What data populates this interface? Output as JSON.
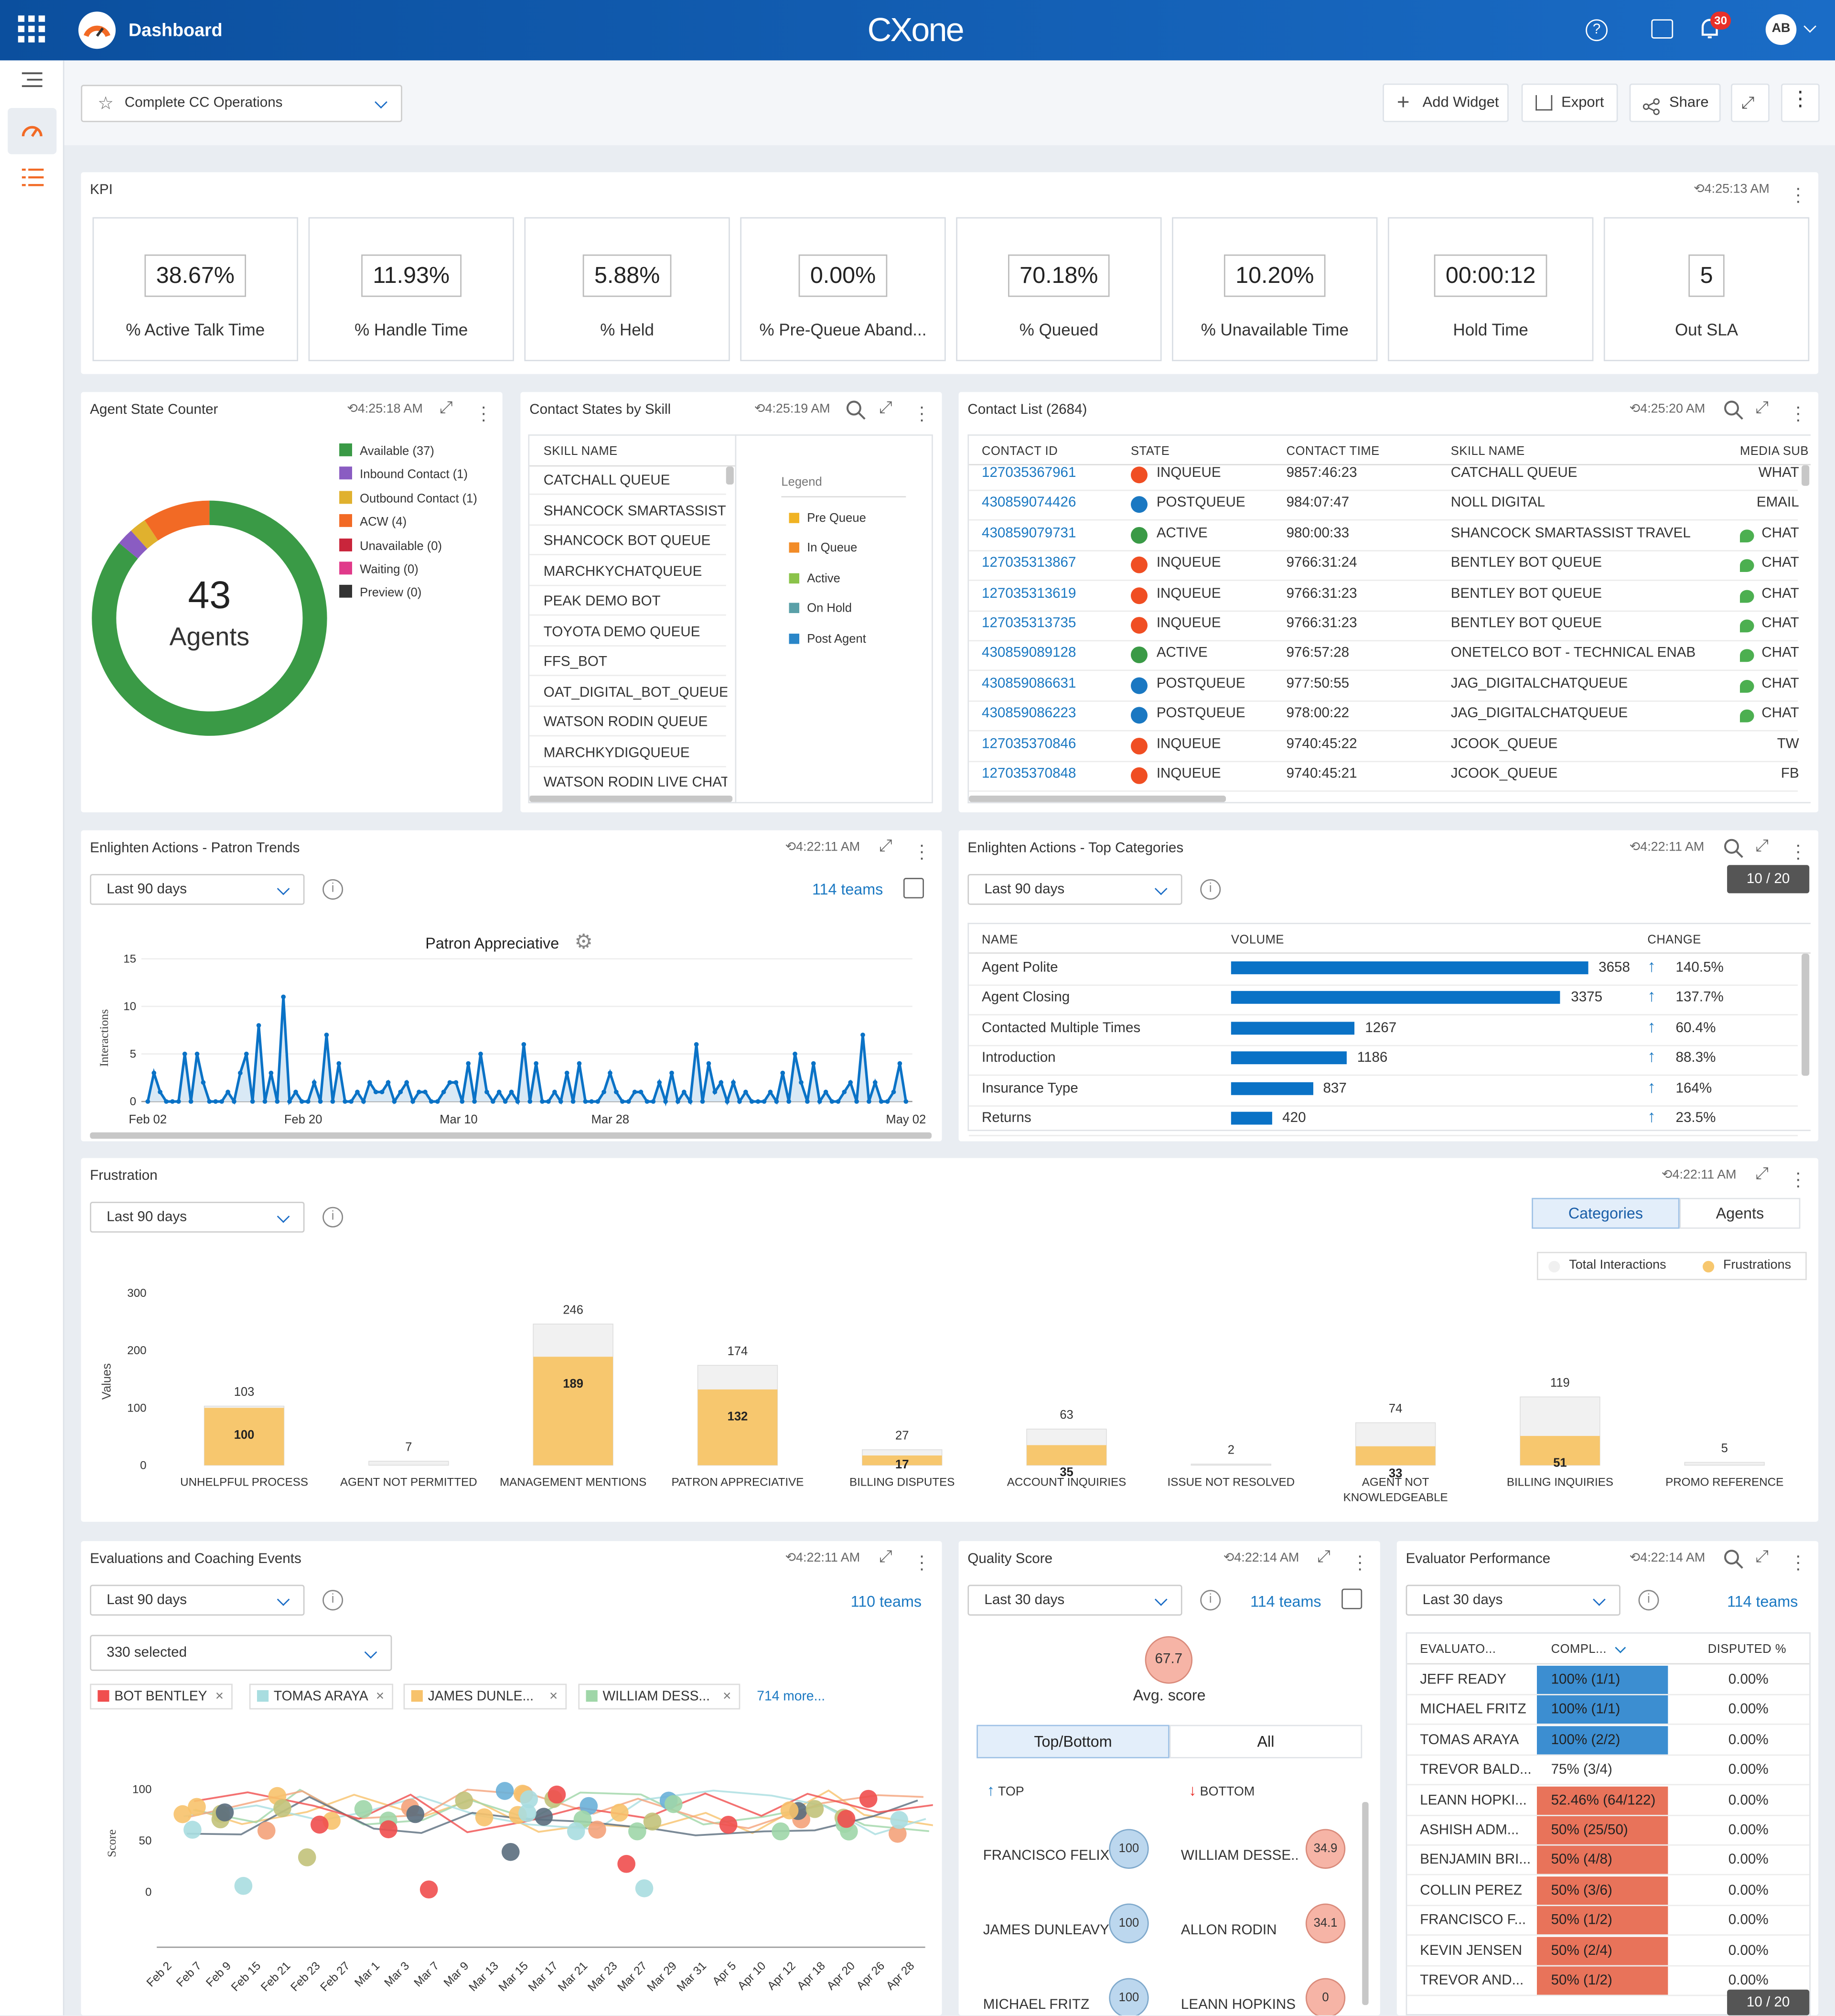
{
  "app": {
    "title": "Dashboard",
    "logo": "CXone",
    "notif_count": "30",
    "avatar": "AB"
  },
  "header": {
    "dashboard_name": "Complete CC Operations",
    "add_widget": "Add Widget",
    "export": "Export",
    "share": "Share"
  },
  "kpi": {
    "title": "KPI",
    "time": "4:25:13 AM",
    "items": [
      {
        "value": "38.67%",
        "label": "% Active Talk Time"
      },
      {
        "value": "11.93%",
        "label": "% Handle Time"
      },
      {
        "value": "5.88%",
        "label": "% Held"
      },
      {
        "value": "0.00%",
        "label": "% Pre-Queue Aband..."
      },
      {
        "value": "70.18%",
        "label": "% Queued"
      },
      {
        "value": "10.20%",
        "label": "% Unavailable Time"
      },
      {
        "value": "00:00:12",
        "label": "Hold Time"
      },
      {
        "value": "5",
        "label": "Out SLA"
      }
    ]
  },
  "agent_state": {
    "title": "Agent State Counter",
    "time": "4:25:18 AM",
    "total": "43",
    "total_label": "Agents",
    "legend": [
      {
        "label": "Available (37)",
        "color": "#3a9a46",
        "value": 37
      },
      {
        "label": "Inbound Contact (1)",
        "color": "#8a5cc2",
        "value": 1
      },
      {
        "label": "Outbound Contact (1)",
        "color": "#e0b12e",
        "value": 1
      },
      {
        "label": "ACW (4)",
        "color": "#f26a25",
        "value": 4
      },
      {
        "label": "Unavailable (0)",
        "color": "#c9253b",
        "value": 0
      },
      {
        "label": "Waiting (0)",
        "color": "#e03a8a",
        "value": 0
      },
      {
        "label": "Preview (0)",
        "color": "#333333",
        "value": 0
      }
    ]
  },
  "contact_states": {
    "title": "Contact States by Skill",
    "time": "4:25:19 AM",
    "col": "SKILL NAME",
    "rows": [
      "CATCHALL QUEUE",
      "SHANCOCK SMARTASSIST TF",
      "SHANCOCK BOT QUEUE",
      "MARCHKYCHATQUEUE",
      "PEAK DEMO BOT",
      "TOYOTA DEMO QUEUE",
      "FFS_BOT",
      "OAT_DIGITAL_BOT_QUEUE",
      "WATSON RODIN QUEUE",
      "MARCHKYDIGQUEUE",
      "WATSON RODIN LIVE CHAT Q"
    ],
    "legend_title": "Legend",
    "legend": [
      {
        "label": "Pre Queue",
        "color": "#f0b323"
      },
      {
        "label": "In Queue",
        "color": "#f28c28"
      },
      {
        "label": "Active",
        "color": "#8bc34a"
      },
      {
        "label": "On Hold",
        "color": "#5aa0a8"
      },
      {
        "label": "Post Agent",
        "color": "#2a86c8"
      }
    ]
  },
  "contact_list": {
    "title": "Contact List (2684)",
    "time": "4:25:20 AM",
    "cols": [
      "CONTACT ID",
      "STATE",
      "CONTACT TIME",
      "SKILL NAME",
      "MEDIA SUB"
    ],
    "rows": [
      {
        "id": "127035367961",
        "state": "INQUEUE",
        "time": "9857:46:23",
        "skill": "CATCHALL QUEUE",
        "media": "WHAT",
        "color": "#f04e23",
        "chat": false
      },
      {
        "id": "430859074426",
        "state": "POSTQUEUE",
        "time": "984:07:47",
        "skill": "NOLL DIGITAL",
        "media": "EMAIL",
        "color": "#1a78c2",
        "chat": false
      },
      {
        "id": "430859079731",
        "state": "ACTIVE",
        "time": "980:00:33",
        "skill": "SHANCOCK SMARTASSIST TRAVEL DF",
        "media": "CHAT",
        "color": "#3a9a46",
        "chat": true
      },
      {
        "id": "127035313867",
        "state": "INQUEUE",
        "time": "9766:31:24",
        "skill": "BENTLEY BOT QUEUE",
        "media": "CHAT",
        "color": "#f04e23",
        "chat": true
      },
      {
        "id": "127035313619",
        "state": "INQUEUE",
        "time": "9766:31:23",
        "skill": "BENTLEY BOT QUEUE",
        "media": "CHAT",
        "color": "#f04e23",
        "chat": true
      },
      {
        "id": "127035313735",
        "state": "INQUEUE",
        "time": "9766:31:23",
        "skill": "BENTLEY BOT QUEUE",
        "media": "CHAT",
        "color": "#f04e23",
        "chat": true
      },
      {
        "id": "430859089128",
        "state": "ACTIVE",
        "time": "976:57:28",
        "skill": "ONETELCO BOT - TECHNICAL ENABL",
        "media": "CHAT",
        "color": "#3a9a46",
        "chat": true
      },
      {
        "id": "430859086631",
        "state": "POSTQUEUE",
        "time": "977:50:55",
        "skill": "JAG_DIGITALCHATQUEUE",
        "media": "CHAT",
        "color": "#1a78c2",
        "chat": true
      },
      {
        "id": "430859086223",
        "state": "POSTQUEUE",
        "time": "978:00:22",
        "skill": "JAG_DIGITALCHATQUEUE",
        "media": "CHAT",
        "color": "#1a78c2",
        "chat": true
      },
      {
        "id": "127035370846",
        "state": "INQUEUE",
        "time": "9740:45:22",
        "skill": "JCOOK_QUEUE",
        "media": "TW",
        "color": "#f04e23",
        "chat": false
      },
      {
        "id": "127035370848",
        "state": "INQUEUE",
        "time": "9740:45:21",
        "skill": "JCOOK_QUEUE",
        "media": "FB",
        "color": "#f04e23",
        "chat": false
      }
    ]
  },
  "patron_trends": {
    "title": "Enlighten Actions - Patron Trends",
    "time": "4:22:11 AM",
    "range": "Last 90 days",
    "teams": "114 teams",
    "chart_data": {
      "type": "area",
      "title": "Patron Appreciative",
      "ylabel": "Interactions",
      "ylim": [
        0,
        15
      ],
      "yticks": [
        0,
        5,
        10,
        15
      ],
      "xtick_labels": [
        "Feb 02",
        "Feb 20",
        "Mar 10",
        "Mar 28",
        "May 02"
      ],
      "values": [
        0,
        3,
        1,
        0,
        0,
        0,
        5,
        0,
        5,
        2,
        0,
        0,
        0,
        1,
        0,
        3,
        5,
        0,
        8,
        0,
        3,
        0,
        11,
        0,
        1,
        0,
        0,
        2,
        0,
        7,
        0,
        4,
        0,
        0,
        1,
        0,
        2,
        1,
        1,
        2,
        0,
        1,
        2,
        0,
        1,
        1,
        0,
        0,
        1,
        2,
        2,
        0,
        4,
        0,
        5,
        1,
        0,
        1,
        0,
        1,
        0,
        6,
        0,
        4,
        0,
        0,
        1,
        0,
        3,
        0,
        4,
        0,
        0,
        0,
        1,
        3,
        1,
        0,
        0,
        1,
        1,
        0,
        0,
        2,
        0,
        3,
        0,
        1,
        0,
        6,
        0,
        4,
        1,
        2,
        0,
        2,
        0,
        1,
        0,
        0,
        0,
        1,
        0,
        3,
        0,
        5,
        2,
        0,
        4,
        0,
        1,
        0,
        0,
        1,
        2,
        0,
        7,
        0,
        2,
        0,
        0,
        1,
        4,
        0
      ]
    }
  },
  "top_categories": {
    "title": "Enlighten Actions - Top Categories",
    "time": "4:22:11 AM",
    "range": "Last 90 days",
    "page": "10 / 20",
    "cols": [
      "NAME",
      "VOLUME",
      "CHANGE"
    ],
    "rows": [
      {
        "name": "Agent Polite",
        "volume": 3658,
        "vtext": "3658",
        "change": "140.5%"
      },
      {
        "name": "Agent Closing",
        "volume": 3375,
        "vtext": "3375",
        "change": "137.7%"
      },
      {
        "name": "Contacted Multiple Times",
        "volume": 1267,
        "vtext": "1267",
        "change": "60.4%"
      },
      {
        "name": "Introduction",
        "volume": 1186,
        "vtext": "1186",
        "change": "88.3%"
      },
      {
        "name": "Insurance Type",
        "volume": 837,
        "vtext": "837",
        "change": "164%"
      },
      {
        "name": "Returns",
        "volume": 420,
        "vtext": "420",
        "change": "23.5%"
      }
    ]
  },
  "frustration": {
    "title": "Frustration",
    "time": "4:22:11 AM",
    "range": "Last 90 days",
    "tab_categories": "Categories",
    "tab_agents": "Agents",
    "legend_total": "Total Interactions",
    "legend_frus": "Frustrations",
    "chart_data": {
      "type": "bar",
      "ylabel": "Values",
      "ylim": [
        0,
        300
      ],
      "yticks": [
        0,
        100,
        200,
        300
      ],
      "categories": [
        "UNHELPFUL PROCESS",
        "AGENT NOT PERMITTED",
        "MANAGEMENT MENTIONS",
        "PATRON APPRECIATIVE",
        "BILLING DISPUTES",
        "ACCOUNT INQUIRIES",
        "ISSUE NOT RESOLVED",
        "AGENT NOT KNOWLEDGEABLE",
        "BILLING INQUIRIES",
        "PROMO REFERENCE"
      ],
      "series": [
        {
          "name": "Total Interactions",
          "values": [
            103,
            7,
            246,
            174,
            27,
            63,
            2,
            74,
            119,
            5
          ]
        },
        {
          "name": "Frustrations",
          "values": [
            100,
            0,
            189,
            132,
            17,
            35,
            0,
            33,
            51,
            0
          ]
        }
      ]
    }
  },
  "evaluations": {
    "title": "Evaluations and Coaching Events",
    "time": "4:22:11 AM",
    "range": "Last 90 days",
    "teams": "110 teams",
    "selected": "330 selected",
    "chips": [
      {
        "label": "BOT BENTLEY",
        "color": "#f04e4e"
      },
      {
        "label": "TOMAS ARAYA",
        "color": "#a8dde0"
      },
      {
        "label": "JAMES DUNLE...",
        "color": "#f7c26b"
      },
      {
        "label": "WILLIAM DESS...",
        "color": "#9fd6a8"
      }
    ],
    "more": "714 more...",
    "chart_data": {
      "type": "scatter",
      "ylabel": "Score",
      "yticks": [
        0,
        50,
        100
      ],
      "xtick_labels": [
        "Feb 2",
        "Feb 7",
        "Feb 9",
        "Feb 15",
        "Feb 21",
        "Feb 23",
        "Feb 27",
        "Mar 1",
        "Mar 3",
        "Mar 7",
        "Mar 9",
        "Mar 13",
        "Mar 15",
        "Mar 17",
        "Mar 21",
        "Mar 23",
        "Mar 27",
        "Mar 29",
        "Mar 31",
        "Apr 5",
        "Apr 10",
        "Apr 12",
        "Apr 18",
        "Apr 20",
        "Apr 26",
        "Apr 28"
      ]
    }
  },
  "quality": {
    "title": "Quality Score",
    "time": "4:22:14 AM",
    "range": "Last 30 days",
    "teams": "114 teams",
    "avg": "67.7",
    "avg_label": "Avg. score",
    "tab1": "Top/Bottom",
    "tab2": "All",
    "top": "TOP",
    "bottom": "BOTTOM",
    "top_list": [
      {
        "name": "FRANCISCO FELIX",
        "score": "100"
      },
      {
        "name": "JAMES DUNLEAVY",
        "score": "100"
      },
      {
        "name": "MICHAEL FRITZ",
        "score": "100"
      }
    ],
    "bottom_list": [
      {
        "name": "WILLIAM DESSE...",
        "score": "34.9"
      },
      {
        "name": "ALLON RODIN",
        "score": "34.1"
      },
      {
        "name": "LEANN HOPKINS",
        "score": "0"
      }
    ]
  },
  "evaluator": {
    "title": "Evaluator Performance",
    "time": "4:22:14 AM",
    "range": "Last 30 days",
    "teams": "114 teams",
    "page": "10 / 20",
    "cols": [
      "EVALUATO...",
      "COMPL...",
      "DISPUTED %"
    ],
    "rows": [
      {
        "name": "JEFF READY",
        "compl": "100% (1/1)",
        "pct": 100,
        "disp": "0.00%"
      },
      {
        "name": "MICHAEL FRITZ",
        "compl": "100% (1/1)",
        "pct": 100,
        "disp": "0.00%"
      },
      {
        "name": "TOMAS ARAYA",
        "compl": "100% (2/2)",
        "pct": 100,
        "disp": "0.00%"
      },
      {
        "name": "TREVOR BALD...",
        "compl": "75% (3/4)",
        "pct": 75,
        "disp": "0.00%"
      },
      {
        "name": "LEANN HOPKI...",
        "compl": "52.46% (64/122)",
        "pct": 52,
        "disp": "0.00%"
      },
      {
        "name": "ASHISH ADM...",
        "compl": "50% (25/50)",
        "pct": 50,
        "disp": "0.00%"
      },
      {
        "name": "BENJAMIN BRI...",
        "compl": "50% (4/8)",
        "pct": 50,
        "disp": "0.00%"
      },
      {
        "name": "COLLIN PEREZ",
        "compl": "50% (3/6)",
        "pct": 50,
        "disp": "0.00%"
      },
      {
        "name": "FRANCISCO F...",
        "compl": "50% (1/2)",
        "pct": 50,
        "disp": "0.00%"
      },
      {
        "name": "KEVIN JENSEN",
        "compl": "50% (2/4)",
        "pct": 50,
        "disp": "0.00%"
      },
      {
        "name": "TREVOR AND...",
        "compl": "50% (1/2)",
        "pct": 50,
        "disp": "0.00%"
      }
    ]
  },
  "colors": {
    "accent": "#1a78c2",
    "link": "#1a78c2",
    "bar": "#0a72c6",
    "good": "#3c8ed1",
    "bad": "#e8735a"
  }
}
